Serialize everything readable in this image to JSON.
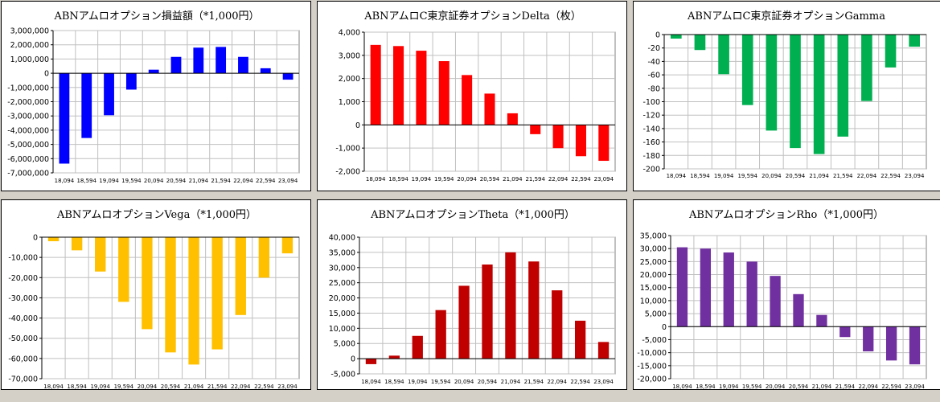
{
  "chart_data": [
    {
      "type": "bar",
      "title": "ABNアムロオプション損益額（*1,000円）",
      "categories": [
        "18,094",
        "18,594",
        "19,094",
        "19,594",
        "20,094",
        "20,594",
        "21,094",
        "21,594",
        "22,094",
        "22,594",
        "23,094"
      ],
      "values": [
        -6350000,
        -4550000,
        -2950000,
        -1150000,
        250000,
        1150000,
        1800000,
        1850000,
        1150000,
        350000,
        -450000
      ],
      "ylim": [
        -7000000,
        3000000
      ],
      "yticks": [
        3000000,
        2000000,
        1000000,
        0,
        -1000000,
        -2000000,
        -3000000,
        -4000000,
        -5000000,
        -6000000,
        -7000000
      ],
      "ytick_labels": [
        "3,000,000",
        "2,000,000",
        "1,000,000",
        "0",
        "-1,000,000",
        "-2,000,000",
        "-3,000,000",
        "-4,000,000",
        "-5,000,000",
        "-6,000,000",
        "-7,000,000"
      ],
      "color": "#0000ff",
      "grid": true
    },
    {
      "type": "bar",
      "title": "ABNアムロC東京証券オプションDelta（枚）",
      "categories": [
        "18,094",
        "18,594",
        "19,094",
        "19,594",
        "20,094",
        "20,594",
        "21,094",
        "21,594",
        "22,094",
        "22,594",
        "23,094"
      ],
      "values": [
        3450,
        3400,
        3200,
        2750,
        2150,
        1350,
        500,
        -400,
        -1000,
        -1350,
        -1550
      ],
      "ylim": [
        -2000,
        4000
      ],
      "yticks": [
        4000,
        3000,
        2000,
        1000,
        0,
        -1000,
        -2000
      ],
      "ytick_labels": [
        "4,000",
        "3,000",
        "2,000",
        "1,000",
        "0",
        "-1,000",
        "-2,000"
      ],
      "color": "#ff0000",
      "grid": true
    },
    {
      "type": "bar",
      "title": "ABNアムロC東京証券オプションGamma",
      "categories": [
        "18,094",
        "18,594",
        "19,094",
        "19,594",
        "20,094",
        "20,594",
        "21,094",
        "21,594",
        "22,094",
        "22,594",
        "23,094"
      ],
      "values": [
        -6,
        -23,
        -59,
        -105,
        -143,
        -169,
        -178,
        -152,
        -99,
        -49,
        -18
      ],
      "ylim": [
        -200,
        0
      ],
      "yticks": [
        0,
        -20,
        -40,
        -60,
        -80,
        -100,
        -120,
        -140,
        -160,
        -180,
        -200
      ],
      "ytick_labels": [
        "0",
        "-20",
        "-40",
        "-60",
        "-80",
        "-100",
        "-120",
        "-140",
        "-160",
        "-180",
        "-200"
      ],
      "color": "#00b050",
      "grid": true
    },
    {
      "type": "bar",
      "title": "ABNアムロオプションVega（*1,000円）",
      "categories": [
        "18,094",
        "18,594",
        "19,094",
        "19,594",
        "20,094",
        "20,594",
        "21,094",
        "21,594",
        "22,094",
        "22,594",
        "23,094"
      ],
      "values": [
        -2000,
        -6500,
        -17000,
        -32000,
        -45500,
        -57000,
        -63000,
        -55500,
        -38500,
        -20000,
        -8000
      ],
      "ylim": [
        -70000,
        0
      ],
      "yticks": [
        0,
        -10000,
        -20000,
        -30000,
        -40000,
        -50000,
        -60000,
        -70000
      ],
      "ytick_labels": [
        "0",
        "-10,000",
        "-20,000",
        "-30,000",
        "-40,000",
        "-50,000",
        "-60,000",
        "-70,000"
      ],
      "color": "#ffc000",
      "grid": true
    },
    {
      "type": "bar",
      "title": "ABNアムロオプションTheta（*1,000円）",
      "categories": [
        "18,094",
        "18,594",
        "19,094",
        "19,594",
        "20,094",
        "20,594",
        "21,094",
        "21,594",
        "22,094",
        "22,594",
        "23,094"
      ],
      "values": [
        -1800,
        1000,
        7500,
        16000,
        24000,
        31000,
        35000,
        32000,
        22500,
        12500,
        5500
      ],
      "ylim": [
        -5000,
        40000
      ],
      "yticks": [
        40000,
        35000,
        30000,
        25000,
        20000,
        15000,
        10000,
        5000,
        0,
        -5000
      ],
      "ytick_labels": [
        "40,000",
        "35,000",
        "30,000",
        "25,000",
        "20,000",
        "15,000",
        "10,000",
        "5,000",
        "0",
        "-5,000"
      ],
      "color": "#c00000",
      "grid": true
    },
    {
      "type": "bar",
      "title": "ABNアムロオプションRho（*1,000円）",
      "categories": [
        "18,094",
        "18,594",
        "19,094",
        "19,594",
        "20,094",
        "20,594",
        "21,094",
        "21,594",
        "22,094",
        "22,594",
        "23,094"
      ],
      "values": [
        30500,
        30000,
        28500,
        25000,
        19500,
        12500,
        4500,
        -4000,
        -9500,
        -13000,
        -14500
      ],
      "ylim": [
        -20000,
        35000
      ],
      "yticks": [
        35000,
        30000,
        25000,
        20000,
        15000,
        10000,
        5000,
        0,
        -5000,
        -10000,
        -15000,
        -20000
      ],
      "ytick_labels": [
        "35,000",
        "30,000",
        "25,000",
        "20,000",
        "15,000",
        "10,000",
        "5,000",
        "0",
        "-5,000",
        "-10,000",
        "-15,000",
        "-20,000"
      ],
      "color": "#7030a0",
      "grid": true
    }
  ]
}
